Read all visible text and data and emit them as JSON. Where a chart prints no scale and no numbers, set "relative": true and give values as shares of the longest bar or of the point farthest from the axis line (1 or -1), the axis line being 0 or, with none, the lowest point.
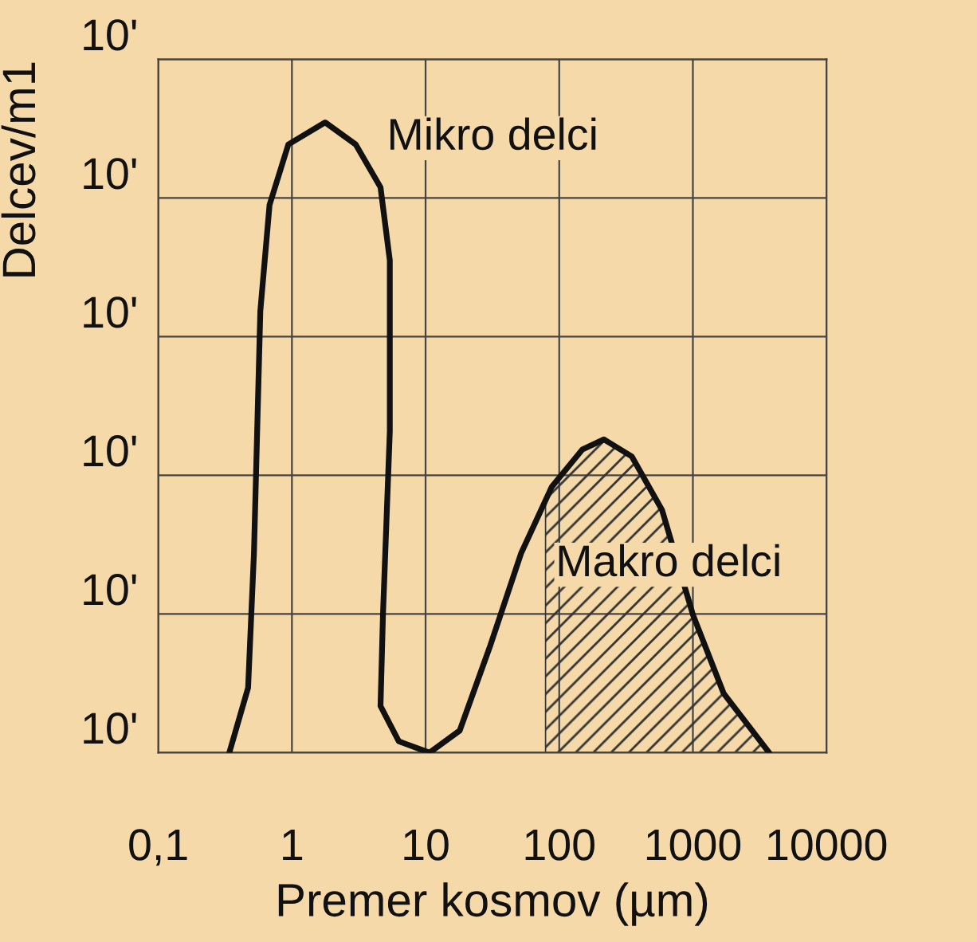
{
  "chart_data": {
    "type": "line",
    "xlabel": "Premer kosmov (µm)",
    "ylabel": "Delcev/m1",
    "relative": true,
    "series": [
      {
        "name": "Mikro delci",
        "color": "#111111",
        "x": [
          0.34,
          0.47,
          0.52,
          0.58,
          0.68,
          0.94,
          1.77,
          3.0,
          4.6,
          5.4,
          5.4,
          4.8,
          4.6,
          6.3,
          10.7
        ],
        "values": [
          0,
          0.103,
          0.317,
          0.7,
          0.869,
          0.965,
          1,
          0.965,
          0.897,
          0.781,
          0.51,
          0.219,
          0.074,
          0.018,
          0
        ]
      },
      {
        "name": "Makro delci",
        "color": "#111111",
        "x": [
          10.7,
          18,
          30.6,
          52,
          88,
          149,
          216,
          349,
          588,
          1000,
          1700,
          3720
        ],
        "values": [
          0,
          0.035,
          0.171,
          0.317,
          0.422,
          0.481,
          0.497,
          0.47,
          0.385,
          0.219,
          0.094,
          0
        ]
      },
      {
        "type": "area",
        "color": "#333333",
        "x": [
          79,
          100,
          149,
          216,
          349,
          588,
          1000,
          1700,
          3720
        ],
        "values": [
          0.405,
          0.438,
          0.481,
          0.497,
          0.47,
          0.385,
          0.219,
          0.094,
          0
        ]
      }
    ],
    "annotations": [
      "10'",
      "10'",
      "10'",
      "10'",
      "10'",
      "10'"
    ],
    "log": "x",
    "xlim": [
      0.1,
      10000
    ],
    "xticks": [
      {
        "value": 0.1,
        "label": "0,1"
      },
      1,
      10,
      100,
      1000,
      10000
    ],
    "grid": true
  }
}
